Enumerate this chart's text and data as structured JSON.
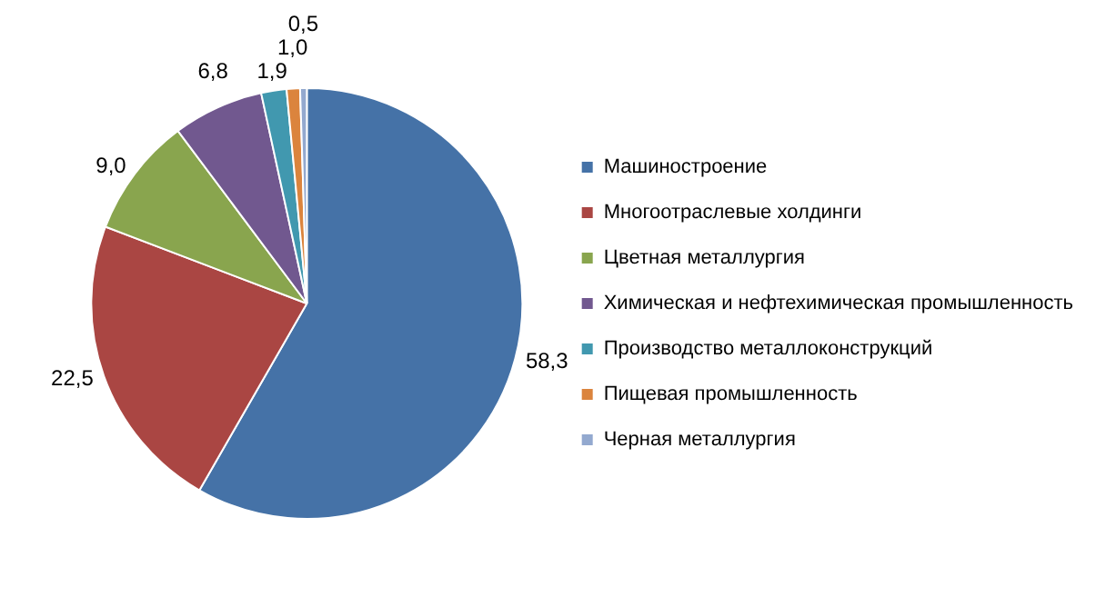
{
  "chart_data": {
    "type": "pie",
    "categories": [
      "Машиностроение",
      "Многоотраслевые холдинги",
      "Цветная металлургия",
      "Химическая и нефтехимическая промышленность",
      "Производство металлоконструкций",
      "Пищевая промышленность",
      "Черная металлургия"
    ],
    "values": [
      58.3,
      22.5,
      9.0,
      6.8,
      1.9,
      1.0,
      0.5
    ],
    "value_labels": [
      "58,3",
      "22,5",
      "9,0",
      "6,8",
      "1,9",
      "1,0",
      "0,5"
    ],
    "colors": [
      "#4572a7",
      "#aa4643",
      "#89a54e",
      "#71588f",
      "#4198af",
      "#db843d",
      "#93a9cf"
    ],
    "legend": "right"
  }
}
